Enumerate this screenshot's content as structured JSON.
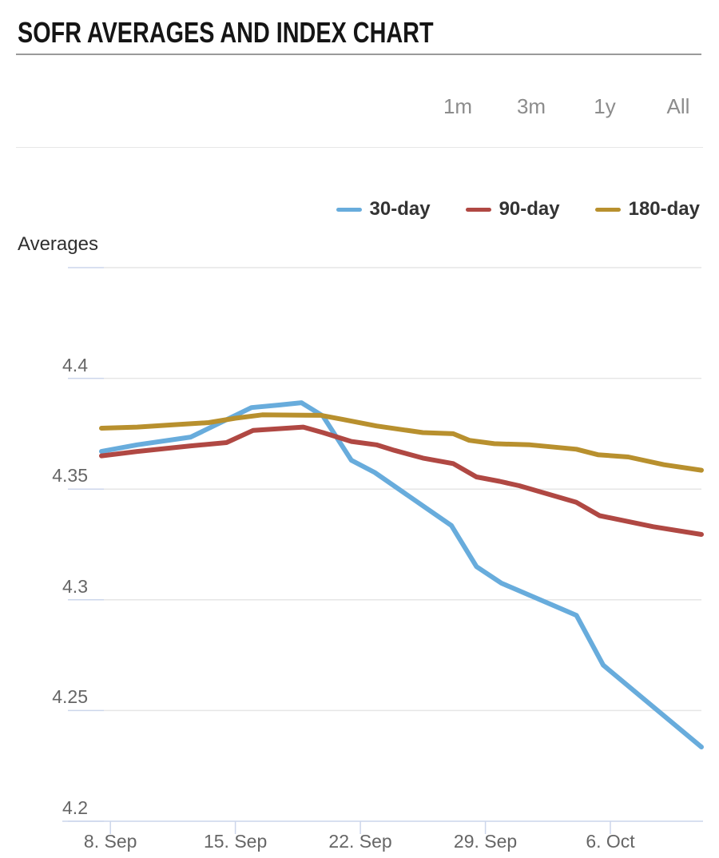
{
  "header": {
    "title": "SOFR AVERAGES AND INDEX CHART"
  },
  "range_selector": {
    "options": [
      "1m",
      "3m",
      "1y",
      "All"
    ]
  },
  "legend": {
    "items": [
      {
        "label": "30-day",
        "color": "#68acdc"
      },
      {
        "label": "90-day",
        "color": "#b04843"
      },
      {
        "label": "180-day",
        "color": "#b8902e"
      }
    ]
  },
  "chart_data": {
    "type": "line",
    "title": "SOFR AVERAGES AND INDEX CHART",
    "yaxis_title": "Averages",
    "xlabel": "",
    "ylabel": "Averages",
    "x_unit": "calendar days from chart start (approx. 7. Sep)",
    "xlim": [
      0,
      33.6
    ],
    "ylim": [
      4.2,
      4.45
    ],
    "grid": true,
    "legend_position": "top-right",
    "xticks": {
      "positions": [
        0.5,
        7.5,
        14.5,
        21.5,
        28.5
      ],
      "labels": [
        "8. Sep",
        "15. Sep",
        "22. Sep",
        "29. Sep",
        "6. Oct"
      ]
    },
    "yticks": {
      "values": [
        4.45,
        4.4,
        4.35,
        4.3,
        4.25,
        4.2
      ],
      "labels": [
        "",
        "4.4",
        "4.35",
        "4.3",
        "4.25",
        "4.2"
      ]
    },
    "series": [
      {
        "name": "30-day",
        "color": "#68acdc",
        "points": [
          [
            0,
            4.367
          ],
          [
            2,
            4.37
          ],
          [
            5,
            4.3735
          ],
          [
            8.4,
            4.3868
          ],
          [
            10,
            4.388
          ],
          [
            11.2,
            4.389
          ],
          [
            12.4,
            4.383
          ],
          [
            14,
            4.363
          ],
          [
            15.3,
            4.3575
          ],
          [
            19.6,
            4.3335
          ],
          [
            21,
            4.315
          ],
          [
            22.4,
            4.3075
          ],
          [
            26.6,
            4.293
          ],
          [
            28.1,
            4.2705
          ],
          [
            33.6,
            4.2335
          ]
        ]
      },
      {
        "name": "90-day",
        "color": "#b04843",
        "points": [
          [
            0,
            4.365
          ],
          [
            2,
            4.367
          ],
          [
            5,
            4.3695
          ],
          [
            7,
            4.371
          ],
          [
            8.5,
            4.3765
          ],
          [
            11.3,
            4.378
          ],
          [
            12.4,
            4.3755
          ],
          [
            14,
            4.3715
          ],
          [
            15.4,
            4.37
          ],
          [
            16.4,
            4.3675
          ],
          [
            18,
            4.364
          ],
          [
            19.7,
            4.3615
          ],
          [
            21,
            4.3555
          ],
          [
            22.3,
            4.3535
          ],
          [
            23.4,
            4.3515
          ],
          [
            26.6,
            4.344
          ],
          [
            27.9,
            4.338
          ],
          [
            30.9,
            4.333
          ],
          [
            33.6,
            4.3295
          ]
        ]
      },
      {
        "name": "180-day",
        "color": "#b8902e",
        "points": [
          [
            0,
            4.3775
          ],
          [
            2,
            4.378
          ],
          [
            4,
            4.379
          ],
          [
            6,
            4.38
          ],
          [
            7.5,
            4.382
          ],
          [
            9,
            4.3835
          ],
          [
            12.3,
            4.3833
          ],
          [
            13.5,
            4.3815
          ],
          [
            15.4,
            4.3785
          ],
          [
            18,
            4.3755
          ],
          [
            19.7,
            4.375
          ],
          [
            20.6,
            4.372
          ],
          [
            22,
            4.3705
          ],
          [
            24,
            4.37
          ],
          [
            26.6,
            4.368
          ],
          [
            27.8,
            4.3655
          ],
          [
            29.5,
            4.3645
          ],
          [
            31.5,
            4.361
          ],
          [
            33.6,
            4.3585
          ]
        ]
      }
    ],
    "colors": {
      "grid": "#e6e6e6",
      "axis": "#ccd6eb",
      "axis_label": "#666666",
      "series_30_day": "#68acdc",
      "series_90_day": "#b04843",
      "series_180_day": "#b8902e"
    }
  }
}
